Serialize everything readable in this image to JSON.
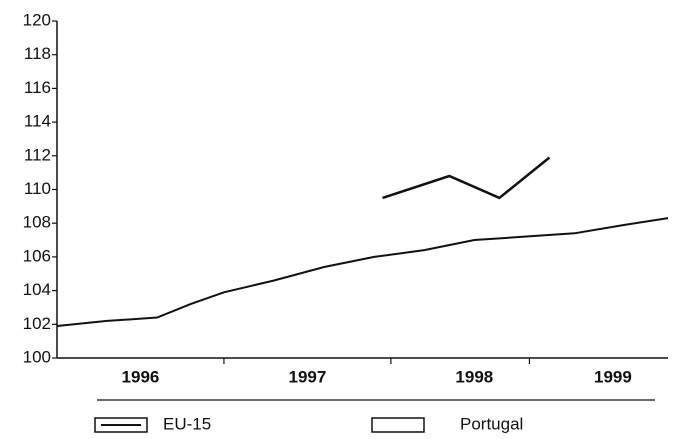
{
  "chart_data": {
    "type": "line",
    "xlim": [
      1996,
      1999.66
    ],
    "xticks": [
      {
        "value": 1996.5,
        "label": "1996"
      },
      {
        "value": 1997.5,
        "label": "1997"
      },
      {
        "value": 1998.5,
        "label": "1998"
      },
      {
        "value": 1999.33,
        "label": "1999"
      }
    ],
    "ylim": [
      100,
      120
    ],
    "yticks": [
      100,
      102,
      104,
      106,
      108,
      110,
      112,
      114,
      116,
      118,
      120
    ],
    "series": [
      {
        "name": "EU-15",
        "color": "#111111",
        "x": [
          1996,
          1996.3,
          1996.6,
          1996.8,
          1997.0,
          1997.3,
          1997.6,
          1997.9,
          1998.2,
          1998.5,
          1998.8,
          1999.1,
          1999.4,
          1999.66
        ],
        "values": [
          101.9,
          102.2,
          102.4,
          103.2,
          103.9,
          104.6,
          105.4,
          106.0,
          106.4,
          107.0,
          107.2,
          107.4,
          107.9,
          108.3
        ]
      },
      {
        "name": "Portugal",
        "color": "#111111",
        "x": [
          1997.95,
          1998.35,
          1998.65,
          1998.95
        ],
        "values": [
          109.5,
          110.8,
          109.5,
          111.9
        ]
      }
    ]
  }
}
